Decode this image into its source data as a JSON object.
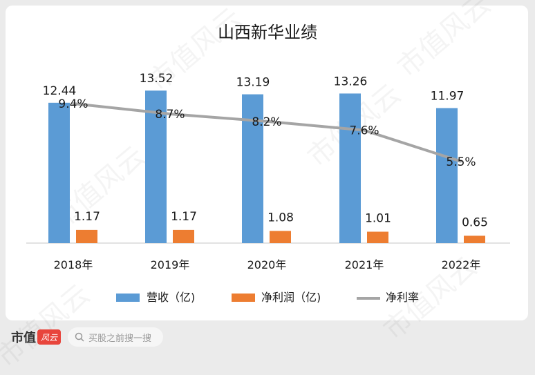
{
  "chart_data": {
    "type": "bar",
    "title": "山西新华业绩",
    "categories": [
      "2018年",
      "2019年",
      "2020年",
      "2021年",
      "2022年"
    ],
    "series": [
      {
        "name": "营收（亿)",
        "type": "bar",
        "color": "#5b9bd5",
        "values": [
          12.44,
          13.52,
          13.19,
          13.26,
          11.97
        ],
        "labels": [
          "12.44",
          "13.52",
          "13.19",
          "13.26",
          "11.97"
        ]
      },
      {
        "name": "净利润（亿)",
        "type": "bar",
        "color": "#ed7d31",
        "values": [
          1.17,
          1.17,
          1.08,
          1.01,
          0.65
        ],
        "labels": [
          "1.17",
          "1.17",
          "1.08",
          "1.01",
          "0.65"
        ]
      },
      {
        "name": "净利率",
        "type": "line",
        "color": "#a5a5a5",
        "values": [
          9.4,
          8.7,
          8.2,
          7.6,
          5.5
        ],
        "labels": [
          "9.4%",
          "8.7%",
          "8.2%",
          "7.6%",
          "5.5%"
        ]
      }
    ],
    "ylim_bars": [
      0,
      15
    ],
    "ylim_line": [
      0,
      11.4
    ],
    "grid": false,
    "legend": "bottom"
  },
  "watermark_text": "市值风云",
  "footer": {
    "brand": "市值",
    "logo": "风云",
    "search_placeholder": "买股之前搜一搜"
  }
}
